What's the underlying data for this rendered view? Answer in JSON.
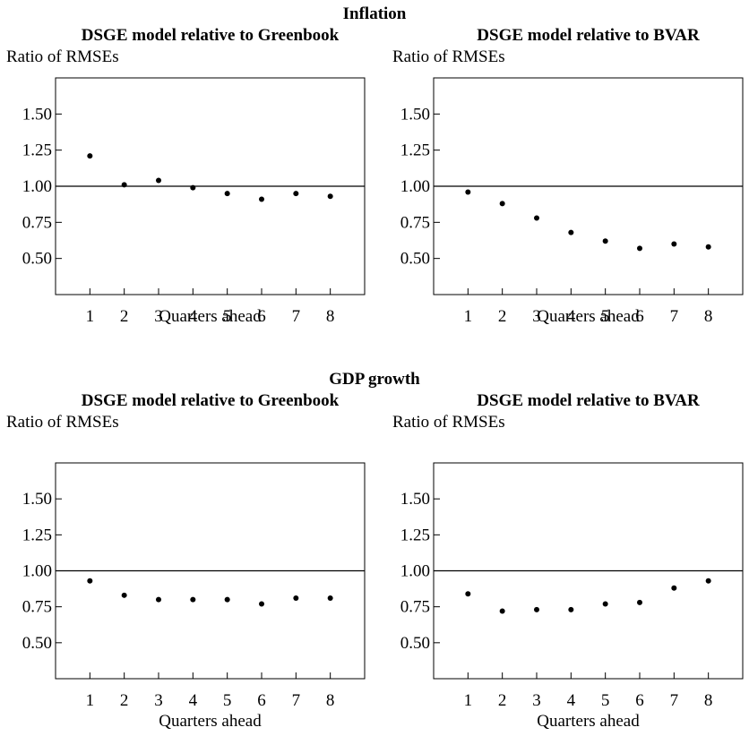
{
  "sections": [
    {
      "title": "Inflation"
    },
    {
      "title": "GDP growth"
    }
  ],
  "chart_data": [
    {
      "type": "scatter",
      "section": "Inflation",
      "title": "DSGE model relative to Greenbook",
      "ylabel": "Ratio of RMSEs",
      "xlabel": "Quarters ahead",
      "x": [
        1,
        2,
        3,
        4,
        5,
        6,
        7,
        8
      ],
      "y": [
        1.21,
        1.01,
        1.04,
        0.99,
        0.95,
        0.91,
        0.95,
        0.93
      ],
      "xlim": [
        0,
        9
      ],
      "ylim": [
        0.25,
        1.75
      ],
      "yticks": [
        "1.50",
        "1.25",
        "1.00",
        "0.75",
        "0.50"
      ],
      "xticks": [
        "1",
        "2",
        "3",
        "4",
        "5",
        "6",
        "7",
        "8"
      ],
      "reference_line": 1.0,
      "grid": false
    },
    {
      "type": "scatter",
      "section": "Inflation",
      "title": "DSGE model relative to BVAR",
      "ylabel": "Ratio of RMSEs",
      "xlabel": "Quarters ahead",
      "x": [
        1,
        2,
        3,
        4,
        5,
        6,
        7,
        8
      ],
      "y": [
        0.96,
        0.88,
        0.78,
        0.68,
        0.62,
        0.57,
        0.6,
        0.58
      ],
      "xlim": [
        0,
        9
      ],
      "ylim": [
        0.25,
        1.75
      ],
      "yticks": [
        "1.50",
        "1.25",
        "1.00",
        "0.75",
        "0.50"
      ],
      "xticks": [
        "1",
        "2",
        "3",
        "4",
        "5",
        "6",
        "7",
        "8"
      ],
      "reference_line": 1.0,
      "grid": false
    },
    {
      "type": "scatter",
      "section": "GDP growth",
      "title": "DSGE model relative to Greenbook",
      "ylabel": "Ratio of RMSEs",
      "xlabel": "Quarters ahead",
      "x": [
        1,
        2,
        3,
        4,
        5,
        6,
        7,
        8
      ],
      "y": [
        0.93,
        0.83,
        0.8,
        0.8,
        0.8,
        0.77,
        0.81,
        0.81
      ],
      "xlim": [
        0,
        9
      ],
      "ylim": [
        0.25,
        1.75
      ],
      "yticks": [
        "1.50",
        "1.25",
        "1.00",
        "0.75",
        "0.50"
      ],
      "xticks": [
        "1",
        "2",
        "3",
        "4",
        "5",
        "6",
        "7",
        "8"
      ],
      "reference_line": 1.0,
      "grid": false
    },
    {
      "type": "scatter",
      "section": "GDP growth",
      "title": "DSGE model relative to BVAR",
      "ylabel": "Ratio of RMSEs",
      "xlabel": "Quarters ahead",
      "x": [
        1,
        2,
        3,
        4,
        5,
        6,
        7,
        8
      ],
      "y": [
        0.84,
        0.72,
        0.73,
        0.73,
        0.77,
        0.78,
        0.88,
        0.93
      ],
      "xlim": [
        0,
        9
      ],
      "ylim": [
        0.25,
        1.75
      ],
      "yticks": [
        "1.50",
        "1.25",
        "1.00",
        "0.75",
        "0.50"
      ],
      "xticks": [
        "1",
        "2",
        "3",
        "4",
        "5",
        "6",
        "7",
        "8"
      ],
      "reference_line": 1.0,
      "grid": false
    }
  ]
}
